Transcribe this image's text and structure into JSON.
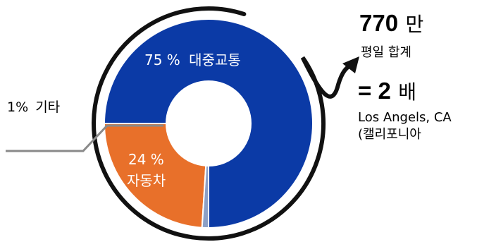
{
  "chart_data": {
    "type": "pie",
    "style": "donut",
    "categories": [
      "대중교통",
      "자동차",
      "기타"
    ],
    "values": [
      75,
      24,
      1
    ],
    "labels": [
      {
        "value_text": "75 %",
        "name": "대중교통"
      },
      {
        "value_text": "24 %",
        "name": "자동차"
      },
      {
        "value_text": "1%",
        "name": "기타"
      }
    ],
    "legend": "none"
  },
  "colors": {
    "transit": "#0B3AA6",
    "car": "#E8702A",
    "other": "#8CA0C6",
    "ring": "#111111",
    "leader": "#8A8A8A"
  },
  "callout": {
    "total_value": "770",
    "total_unit": "만",
    "total_caption": "평일 합계",
    "equals_value": "= 2",
    "equals_unit": "배",
    "city_line1": "Los Angels, CA",
    "city_line2": "(캘리포니아"
  }
}
